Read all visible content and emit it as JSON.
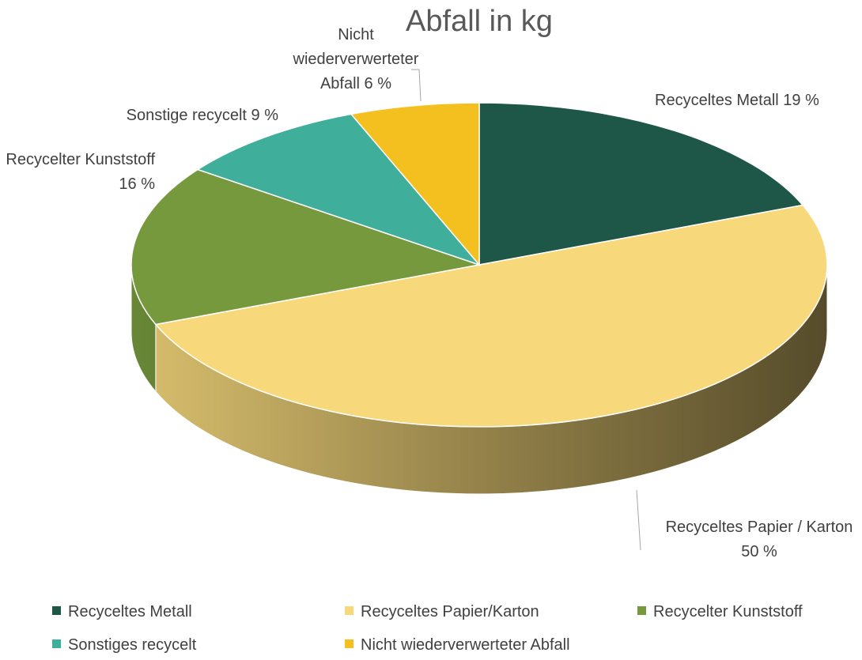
{
  "chart_data": {
    "type": "pie",
    "title": "Abfall in kg",
    "categories": [
      "Recyceltes Metall",
      "Recyceltes Papier/Karton",
      "Recycelter Kunststoff",
      "Sonstiges recycelt",
      "Nicht wiederverwerteter Abfall"
    ],
    "values": [
      19,
      50,
      16,
      9,
      6
    ],
    "value_labels": [
      "Recyceltes Metall 19 %",
      "Recyceltes Papier / Karton 50 %",
      "Recycelter Kunststoff 16 %",
      "Sonstige recycelt 9 %",
      "Nicht wiederverwerteter Abfall 6 %"
    ],
    "colors": [
      "#1e5748",
      "#f7d97c",
      "#76993d",
      "#3fae9a",
      "#f4c020"
    ],
    "legend": "bottom"
  }
}
